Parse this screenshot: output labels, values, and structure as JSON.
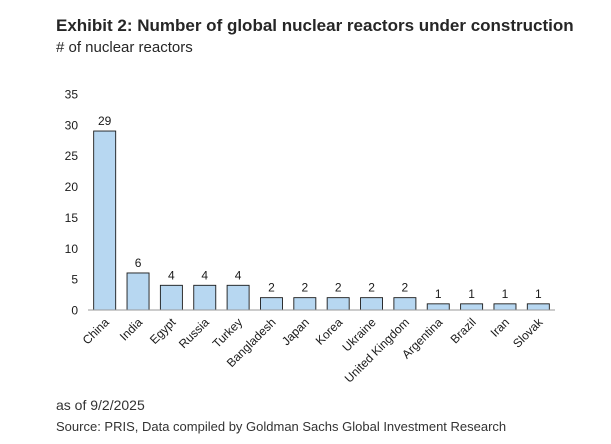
{
  "title": "Exhibit 2: Number of global nuclear reactors under construction",
  "subtitle": "# of nuclear reactors",
  "footer": {
    "as_of": "as of 9/2/2025",
    "source": "Source: PRIS, Data compiled by Goldman Sachs Global Investment Research"
  },
  "colors": {
    "bar_fill": "#b7d7f1",
    "bar_stroke": "#1a1a1a",
    "axis": "#9a9a9a"
  },
  "chart_data": {
    "type": "bar",
    "title": "Exhibit 2: Number of global nuclear reactors under construction",
    "ylabel": "# of nuclear reactors",
    "xlabel": "",
    "categories": [
      "China",
      "India",
      "Egypt",
      "Russia",
      "Turkey",
      "Bangladesh",
      "Japan",
      "Korea",
      "Ukraine",
      "United Kingdom",
      "Argentina",
      "Brazil",
      "Iran",
      "Slovak"
    ],
    "values": [
      29,
      6,
      4,
      4,
      4,
      2,
      2,
      2,
      2,
      2,
      1,
      1,
      1,
      1
    ],
    "yticks": [
      0,
      5,
      10,
      15,
      20,
      25,
      30,
      35
    ],
    "ylim": [
      0,
      35
    ],
    "data_labels": true,
    "grid": false,
    "legend": "none"
  }
}
